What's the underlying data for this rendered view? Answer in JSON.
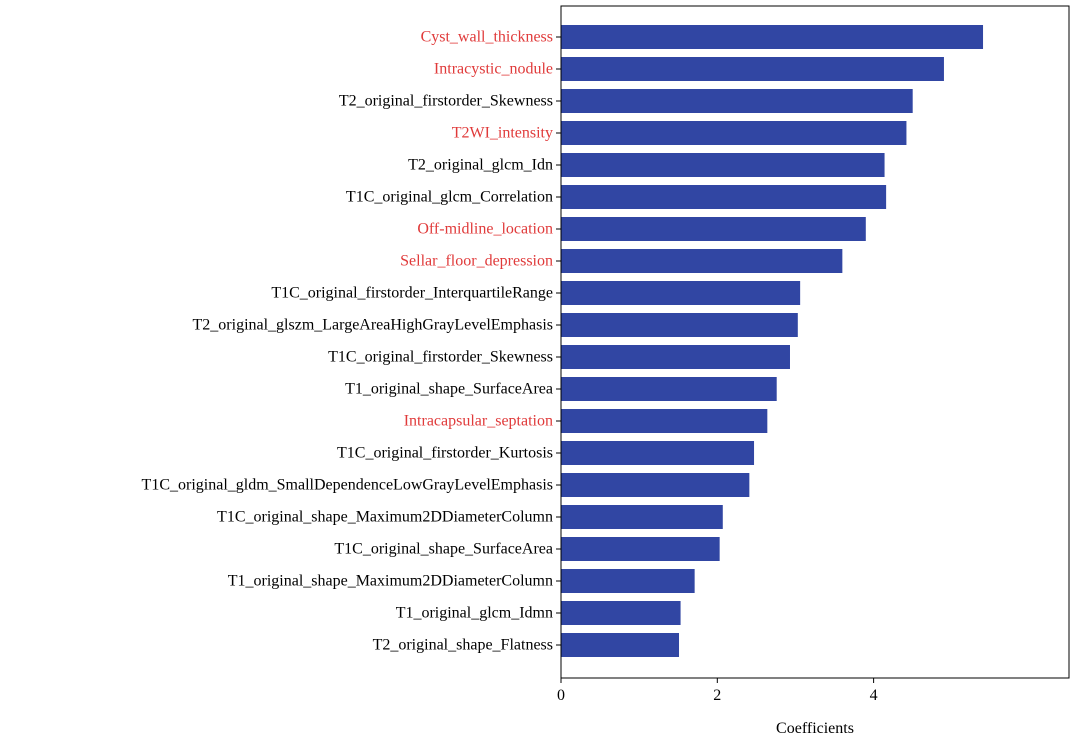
{
  "chart_data": {
    "type": "bar",
    "orientation": "horizontal",
    "xlabel": "Coefficients",
    "ylabel": "",
    "title": "",
    "xlim": [
      0,
      6.5
    ],
    "xticks": [
      "0",
      "2",
      "4"
    ],
    "grid": false,
    "bar_color": "#3146a3",
    "colors": {
      "radiomic": "#000000",
      "clinical": "#e03a3a"
    },
    "categories": [
      "Cyst_wall_thickness",
      "Intracystic_nodule",
      "T2_original_firstorder_Skewness",
      "T2WI_intensity",
      "T2_original_glcm_Idn",
      "T1C_original_glcm_Correlation",
      "Off-midline_location",
      "Sellar_floor_depression",
      "T1C_original_firstorder_InterquartileRange",
      "T2_original_glszm_LargeAreaHighGrayLevelEmphasis",
      "T1C_original_firstorder_Skewness",
      "T1_original_shape_SurfaceArea",
      "Intracapsular_septation",
      "T1C_original_firstorder_Kurtosis",
      "T1C_original_gldm_SmallDependenceLowGrayLevelEmphasis",
      "T1C_original_shape_Maximum2DDiameterColumn",
      "T1C_original_shape_SurfaceArea",
      "T1_original_shape_Maximum2DDiameterColumn",
      "T1_original_glcm_Idmn",
      "T2_original_shape_Flatness"
    ],
    "values": [
      5.4,
      4.9,
      4.5,
      4.42,
      4.14,
      4.16,
      3.9,
      3.6,
      3.06,
      3.03,
      2.93,
      2.76,
      2.64,
      2.47,
      2.41,
      2.07,
      2.03,
      1.71,
      1.53,
      1.51
    ],
    "category_type": [
      "clinical",
      "clinical",
      "radiomic",
      "clinical",
      "radiomic",
      "radiomic",
      "clinical",
      "clinical",
      "radiomic",
      "radiomic",
      "radiomic",
      "radiomic",
      "clinical",
      "radiomic",
      "radiomic",
      "radiomic",
      "radiomic",
      "radiomic",
      "radiomic",
      "radiomic"
    ]
  }
}
